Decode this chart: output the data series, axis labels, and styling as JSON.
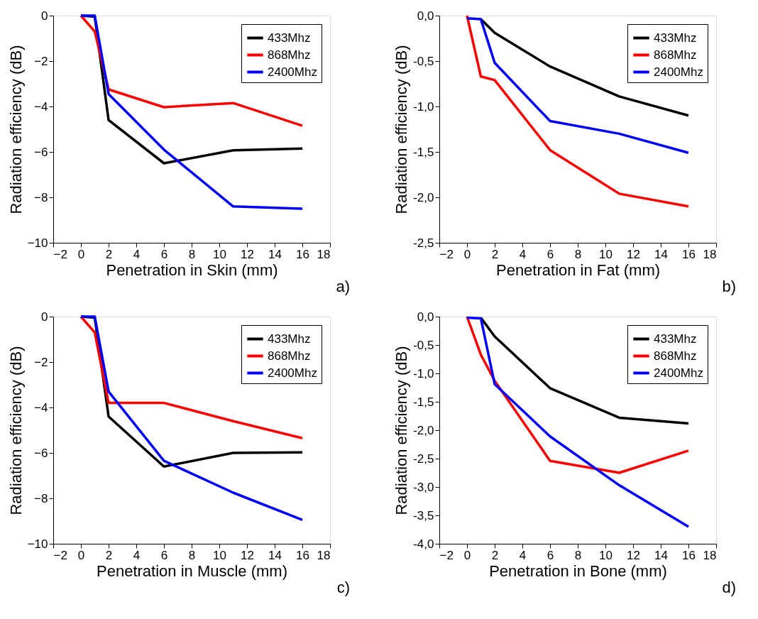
{
  "chart_data": [
    {
      "type": "line",
      "xlabel": "Penetration in Skin (mm)",
      "ylabel": "Radiation efficiency (dB)",
      "annotations": [
        "a)"
      ],
      "x": [
        0,
        1,
        2,
        6,
        11,
        16
      ],
      "xlim": [
        -2,
        18
      ],
      "xticks": [
        -2,
        0,
        2,
        4,
        6,
        8,
        10,
        12,
        14,
        16,
        18
      ],
      "ylim": [
        -10,
        0
      ],
      "yticks": [
        -10,
        -8,
        -6,
        -4,
        -2,
        0
      ],
      "legend": "top right",
      "grid": false,
      "line_style": "solid",
      "marker": "none",
      "series": [
        {
          "name": "433Mhz",
          "color": "#000000",
          "values": [
            0,
            -0.05,
            -4.6,
            -6.5,
            -5.93,
            -5.85
          ]
        },
        {
          "name": "868Mhz",
          "color": "#ff0000",
          "values": [
            0,
            -0.7,
            -3.25,
            -4.03,
            -3.85,
            -4.85
          ]
        },
        {
          "name": "2400Mhz",
          "color": "#0000ff",
          "values": [
            0,
            0,
            -3.45,
            -5.9,
            -8.4,
            -8.5
          ]
        }
      ]
    },
    {
      "type": "line",
      "xlabel": "Penetration in Fat (mm)",
      "ylabel": "Radiation efficiency (dB)",
      "annotations": [
        "b)"
      ],
      "x": [
        0,
        1,
        2,
        6,
        11,
        16
      ],
      "xlim": [
        -2,
        18
      ],
      "xticks": [
        -2,
        0,
        2,
        4,
        6,
        8,
        10,
        12,
        14,
        16,
        18
      ],
      "ylim": [
        -2.5,
        0
      ],
      "yticks": [
        {
          "value": -2.5,
          "label": "-2,5"
        },
        {
          "value": -2.0,
          "label": "-2,0"
        },
        {
          "value": -1.5,
          "label": "-1,5"
        },
        {
          "value": -1.0,
          "label": "-1,0"
        },
        {
          "value": -0.5,
          "label": "-0,5"
        },
        {
          "value": 0,
          "label": "0,0"
        }
      ],
      "legend": "top right",
      "grid": false,
      "line_style": "solid",
      "marker": "none",
      "series": [
        {
          "name": "433Mhz",
          "color": "#000000",
          "values": [
            null,
            -0.04,
            -0.19,
            -0.56,
            -0.89,
            -1.1
          ]
        },
        {
          "name": "868Mhz",
          "color": "#ff0000",
          "values": [
            0,
            -0.67,
            -0.71,
            -1.48,
            -1.96,
            -2.1
          ]
        },
        {
          "name": "2400Mhz",
          "color": "#0000ff",
          "values": [
            -0.03,
            -0.04,
            -0.52,
            -1.16,
            -1.3,
            -1.51
          ]
        }
      ]
    },
    {
      "type": "line",
      "xlabel": "Penetration in Muscle (mm)",
      "ylabel": "Radiation efficiency (dB)",
      "annotations": [
        "c)"
      ],
      "x": [
        0,
        1,
        2,
        6,
        11,
        16
      ],
      "xlim": [
        -2,
        18
      ],
      "xticks": [
        -2,
        0,
        2,
        4,
        6,
        8,
        10,
        12,
        14,
        16,
        18
      ],
      "ylim": [
        -10,
        0
      ],
      "yticks": [
        -10,
        -8,
        -6,
        -4,
        -2,
        0
      ],
      "legend": "top right",
      "grid": false,
      "line_style": "solid",
      "marker": "none",
      "series": [
        {
          "name": "433Mhz",
          "color": "#000000",
          "values": [
            0,
            -0.05,
            -4.4,
            -6.6,
            -6.0,
            -5.98
          ]
        },
        {
          "name": "868Mhz",
          "color": "#ff0000",
          "values": [
            0,
            -0.7,
            -3.8,
            -3.8,
            -4.6,
            -5.35
          ]
        },
        {
          "name": "2400Mhz",
          "color": "#0000ff",
          "values": [
            0,
            0,
            -3.3,
            -6.35,
            -7.75,
            -8.95
          ]
        }
      ]
    },
    {
      "type": "line",
      "xlabel": "Penetration in Bone (mm)",
      "ylabel": "Radiation efficiency (dB)",
      "annotations": [
        "d)"
      ],
      "x": [
        0,
        1,
        2,
        6,
        11,
        16
      ],
      "xlim": [
        -2,
        18
      ],
      "xticks": [
        -2,
        0,
        2,
        4,
        6,
        8,
        10,
        12,
        14,
        16,
        18
      ],
      "ylim": [
        -4,
        0
      ],
      "yticks": [
        {
          "value": -4.0,
          "label": "-4,0"
        },
        {
          "value": -3.5,
          "label": "-3,5"
        },
        {
          "value": -3.0,
          "label": "-3,0"
        },
        {
          "value": -2.5,
          "label": "-2,5"
        },
        {
          "value": -2.0,
          "label": "-2,0"
        },
        {
          "value": -1.5,
          "label": "-1,5"
        },
        {
          "value": -1.0,
          "label": "-1,0"
        },
        {
          "value": -0.5,
          "label": "-0,5"
        },
        {
          "value": 0,
          "label": "0,0"
        }
      ],
      "legend": "top right",
      "grid": false,
      "line_style": "solid",
      "marker": "none",
      "series": [
        {
          "name": "433Mhz",
          "color": "#000000",
          "values": [
            null,
            -0.02,
            -0.35,
            -1.26,
            -1.78,
            -1.88
          ]
        },
        {
          "name": "868Mhz",
          "color": "#ff0000",
          "values": [
            0,
            -0.67,
            -1.13,
            -2.54,
            -2.75,
            -2.36
          ]
        },
        {
          "name": "2400Mhz",
          "color": "#0000ff",
          "values": [
            -0.02,
            -0.03,
            -1.19,
            -2.11,
            -2.97,
            -3.7
          ]
        }
      ]
    }
  ]
}
